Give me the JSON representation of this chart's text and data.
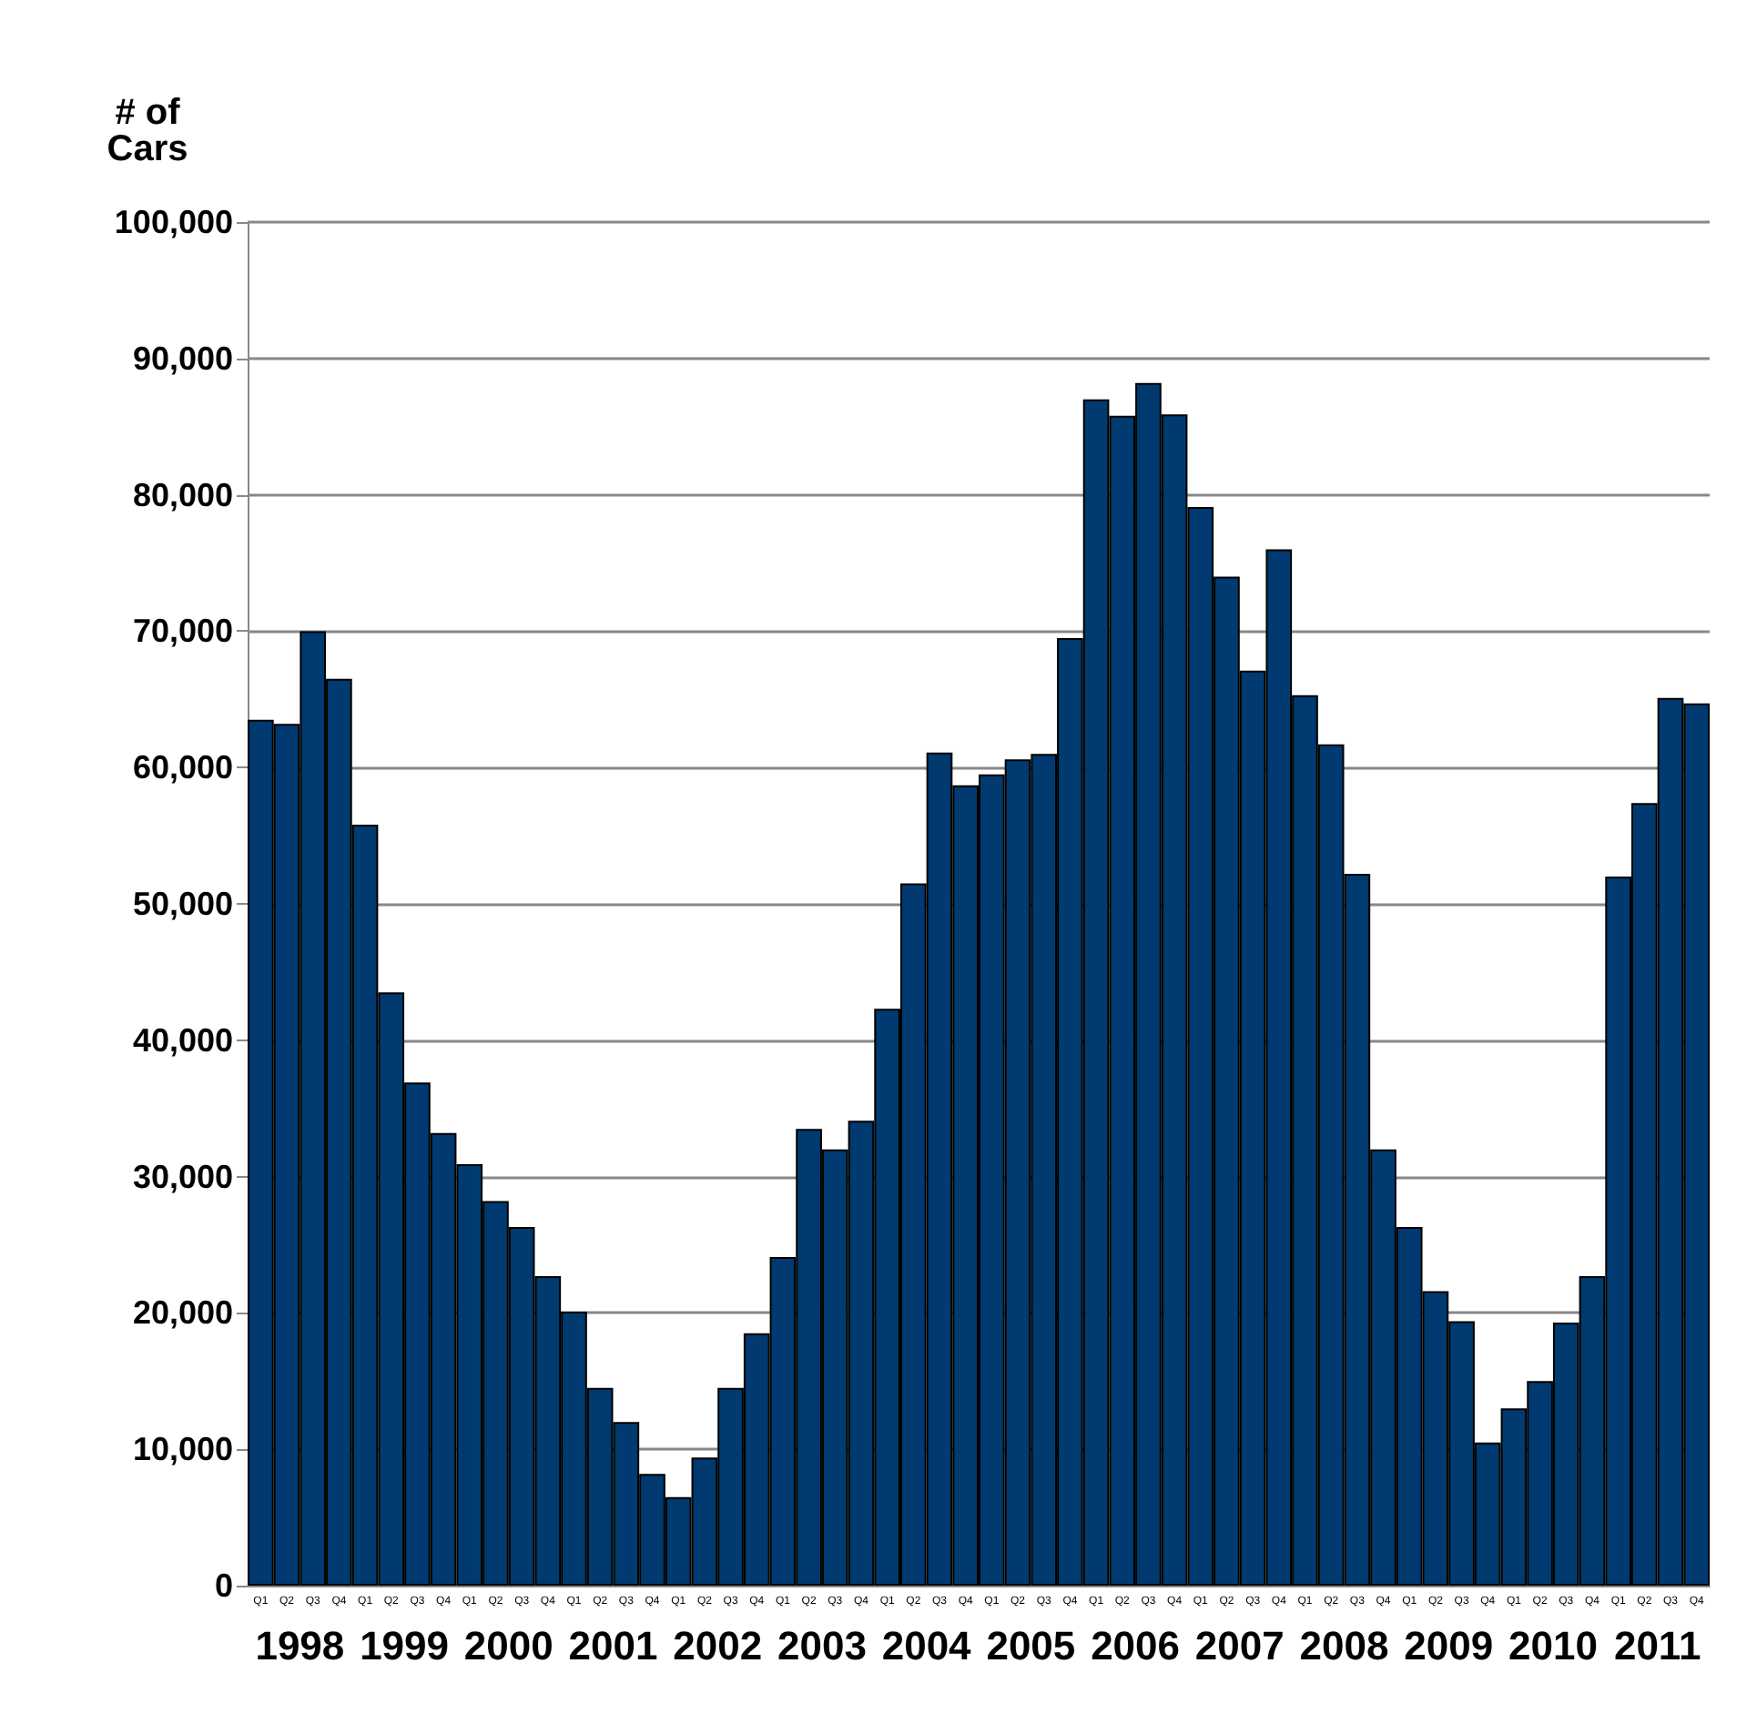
{
  "chart_data": {
    "type": "bar",
    "ylabel": "# of\nCars",
    "categories": [
      "Q1",
      "Q2",
      "Q3",
      "Q4",
      "Q1",
      "Q2",
      "Q3",
      "Q4",
      "Q1",
      "Q2",
      "Q3",
      "Q4",
      "Q1",
      "Q2",
      "Q3",
      "Q4",
      "Q1",
      "Q2",
      "Q3",
      "Q4",
      "Q1",
      "Q2",
      "Q3",
      "Q4",
      "Q1",
      "Q2",
      "Q3",
      "Q4",
      "Q1",
      "Q2",
      "Q3",
      "Q4",
      "Q1",
      "Q2",
      "Q3",
      "Q4",
      "Q1",
      "Q2",
      "Q3",
      "Q4",
      "Q1",
      "Q2",
      "Q3",
      "Q4",
      "Q1",
      "Q2",
      "Q3",
      "Q4",
      "Q1",
      "Q2",
      "Q3",
      "Q4",
      "Q1",
      "Q2",
      "Q3",
      "Q4"
    ],
    "values": [
      63500,
      63200,
      70000,
      66500,
      55800,
      43500,
      36900,
      33200,
      30900,
      28200,
      26300,
      22700,
      20100,
      14500,
      12000,
      8200,
      6500,
      9400,
      14500,
      18500,
      24100,
      33500,
      32000,
      34100,
      42300,
      51500,
      61100,
      58700,
      59500,
      60600,
      61000,
      69500,
      87000,
      85800,
      88200,
      85900,
      79100,
      74000,
      67100,
      76000,
      65300,
      61700,
      52200,
      32000,
      26300,
      21600,
      19400,
      10500,
      13000,
      15000,
      19300,
      22700,
      52000,
      57400,
      65100,
      64700
    ],
    "color": "#003a70",
    "ylim": [
      0,
      100000
    ],
    "yticks": [
      {
        "value": 0,
        "label": "0"
      },
      {
        "value": 10000,
        "label": "10,000"
      },
      {
        "value": 20000,
        "label": "20,000"
      },
      {
        "value": 30000,
        "label": "30,000"
      },
      {
        "value": 40000,
        "label": "40,000"
      },
      {
        "value": 50000,
        "label": "50,000"
      },
      {
        "value": 60000,
        "label": "60,000"
      },
      {
        "value": 70000,
        "label": "70,000"
      },
      {
        "value": 80000,
        "label": "80,000"
      },
      {
        "value": 90000,
        "label": "90,000"
      },
      {
        "value": 100000,
        "label": "100,000"
      }
    ],
    "grid": "y",
    "annotations": [
      "1998",
      "1999",
      "2000",
      "2001",
      "2002",
      "2003",
      "2004",
      "2005",
      "2006",
      "2007",
      "2008",
      "2009",
      "2010",
      "2011"
    ]
  }
}
